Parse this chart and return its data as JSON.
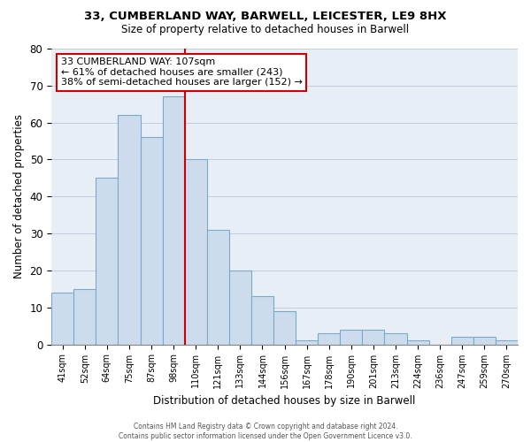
{
  "title1": "33, CUMBERLAND WAY, BARWELL, LEICESTER, LE9 8HX",
  "title2": "Size of property relative to detached houses in Barwell",
  "xlabel": "Distribution of detached houses by size in Barwell",
  "ylabel": "Number of detached properties",
  "bin_labels": [
    "41sqm",
    "52sqm",
    "64sqm",
    "75sqm",
    "87sqm",
    "98sqm",
    "110sqm",
    "121sqm",
    "133sqm",
    "144sqm",
    "156sqm",
    "167sqm",
    "178sqm",
    "190sqm",
    "201sqm",
    "213sqm",
    "224sqm",
    "236sqm",
    "247sqm",
    "259sqm",
    "270sqm"
  ],
  "values": [
    14,
    15,
    45,
    62,
    56,
    67,
    50,
    31,
    20,
    13,
    9,
    1,
    3,
    4,
    4,
    3,
    1,
    0,
    2,
    2,
    1
  ],
  "bar_color": "#ccdcec",
  "bar_edge_color": "#7aaaca",
  "vline_color": "#cc0000",
  "vline_position": 6,
  "annotation_title": "33 CUMBERLAND WAY: 107sqm",
  "annotation_line1": "← 61% of detached houses are smaller (243)",
  "annotation_line2": "38% of semi-detached houses are larger (152) →",
  "annotation_box_facecolor": "#ffffff",
  "annotation_box_edgecolor": "#cc0000",
  "bg_color": "#e8eef6",
  "ylim": [
    0,
    80
  ],
  "yticks": [
    0,
    10,
    20,
    30,
    40,
    50,
    60,
    70,
    80
  ],
  "footer1": "Contains HM Land Registry data © Crown copyright and database right 2024.",
  "footer2": "Contains public sector information licensed under the Open Government Licence v3.0."
}
